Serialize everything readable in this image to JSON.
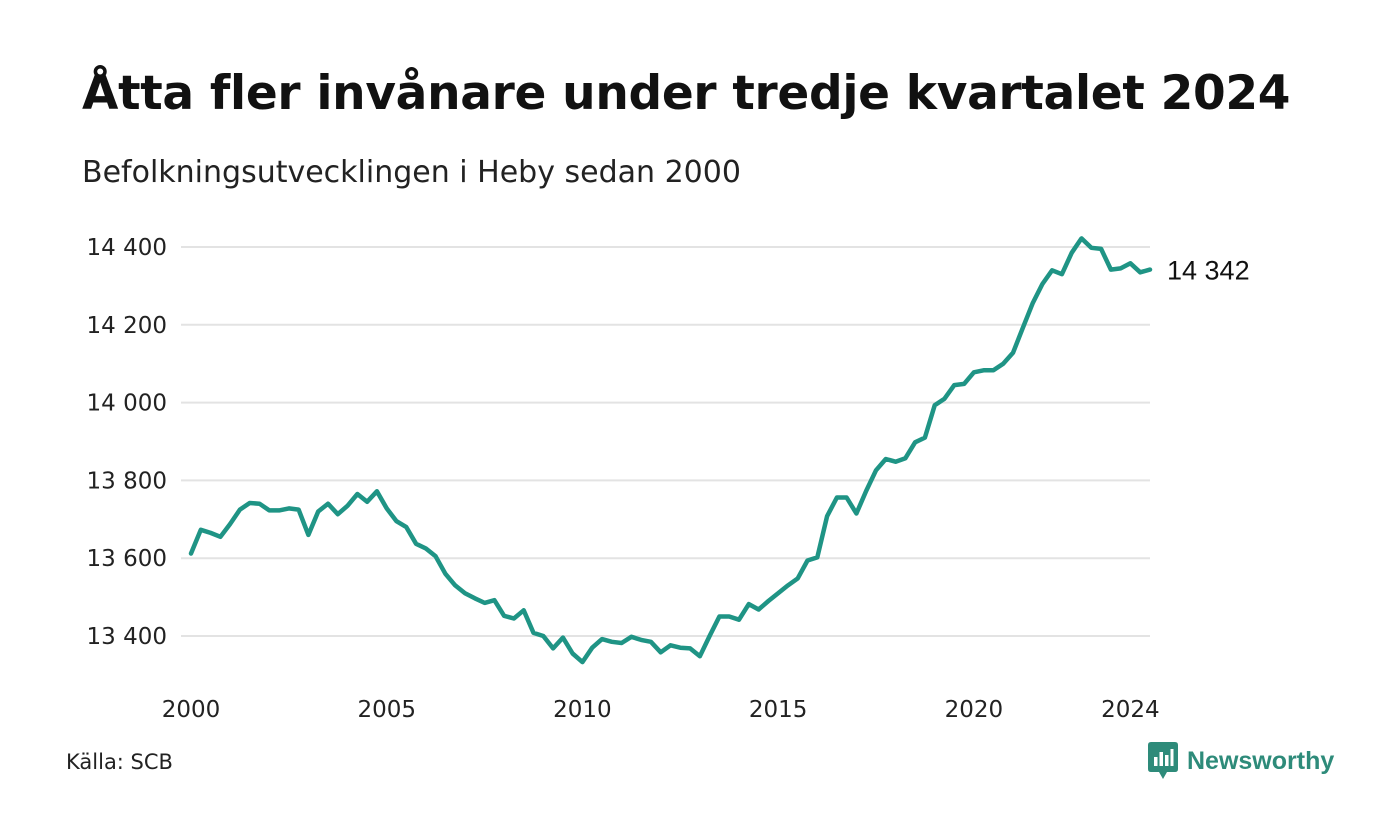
{
  "title": "Åtta fler invånare under tredje kvartalet 2024",
  "subtitle": "Befolkningsutvecklingen i Heby sedan 2000",
  "source": "Källa: SCB",
  "brand": "Newsworthy",
  "colors": {
    "line": "#1f9485",
    "grid": "#e3e3e3",
    "brand": "#2e8b7a"
  },
  "chart_data": {
    "type": "line",
    "title": "Åtta fler invånare under tredje kvartalet 2024",
    "subtitle": "Befolkningsutvecklingen i Heby sedan 2000",
    "xlabel": "",
    "ylabel": "",
    "x_tick_labels": [
      "2000",
      "2005",
      "2010",
      "2015",
      "2020",
      "2024"
    ],
    "y_tick_labels": [
      "14 400",
      "14 200",
      "14 000",
      "13 800",
      "13 600",
      "13 400"
    ],
    "y_ticks": [
      14400,
      14200,
      14000,
      13800,
      13600,
      13400
    ],
    "xlim": [
      2000.0,
      2024.5
    ],
    "ylim": [
      13300,
      14450
    ],
    "grid": "horizontal",
    "end_label": "14 342",
    "series": [
      {
        "x": [
          2000.0,
          2000.25,
          2000.5,
          2000.75,
          2001.0,
          2001.25,
          2001.5,
          2001.75,
          2002.0,
          2002.25,
          2002.5,
          2002.75,
          2003.0,
          2003.25,
          2003.5,
          2003.75,
          2004.0,
          2004.25,
          2004.5,
          2004.75,
          2005.0,
          2005.25,
          2005.5,
          2005.75,
          2006.0,
          2006.25,
          2006.5,
          2006.75,
          2007.0,
          2007.25,
          2007.5,
          2007.75,
          2008.0,
          2008.25,
          2008.5,
          2008.75,
          2009.0,
          2009.25,
          2009.5,
          2009.75,
          2010.0,
          2010.25,
          2010.5,
          2010.75,
          2011.0,
          2011.25,
          2011.5,
          2011.75,
          2012.0,
          2012.25,
          2012.5,
          2012.75,
          2013.0,
          2013.25,
          2013.5,
          2013.75,
          2014.0,
          2014.25,
          2014.5,
          2014.75,
          2015.0,
          2015.25,
          2015.5,
          2015.75,
          2016.0,
          2016.25,
          2016.5,
          2016.75,
          2017.0,
          2017.25,
          2017.5,
          2017.75,
          2018.0,
          2018.25,
          2018.5,
          2018.75,
          2019.0,
          2019.25,
          2019.5,
          2019.75,
          2020.0,
          2020.25,
          2020.5,
          2020.75,
          2021.0,
          2021.25,
          2021.5,
          2021.75,
          2022.0,
          2022.25,
          2022.5,
          2022.75,
          2023.0,
          2023.25,
          2023.5,
          2023.75,
          2024.0,
          2024.25,
          2024.5
        ],
        "y": [
          13612,
          13673,
          13665,
          13655,
          13688,
          13725,
          13742,
          13740,
          13723,
          13723,
          13728,
          13725,
          13660,
          13720,
          13740,
          13713,
          13735,
          13765,
          13745,
          13772,
          13728,
          13695,
          13680,
          13637,
          13625,
          13605,
          13560,
          13530,
          13510,
          13497,
          13485,
          13492,
          13452,
          13445,
          13466,
          13408,
          13400,
          13368,
          13396,
          13355,
          13333,
          13370,
          13392,
          13385,
          13382,
          13398,
          13390,
          13385,
          13358,
          13376,
          13370,
          13368,
          13348,
          13400,
          13450,
          13450,
          13442,
          13482,
          13468,
          13490,
          13510,
          13530,
          13548,
          13594,
          13602,
          13708,
          13756,
          13756,
          13715,
          13773,
          13826,
          13855,
          13848,
          13857,
          13898,
          13910,
          13993,
          14010,
          14045,
          14048,
          14078,
          14083,
          14083,
          14100,
          14128,
          14192,
          14255,
          14305,
          14340,
          14330,
          14385,
          14422,
          14398,
          14395,
          14342,
          14345,
          14358,
          14335,
          14342
        ]
      }
    ]
  }
}
